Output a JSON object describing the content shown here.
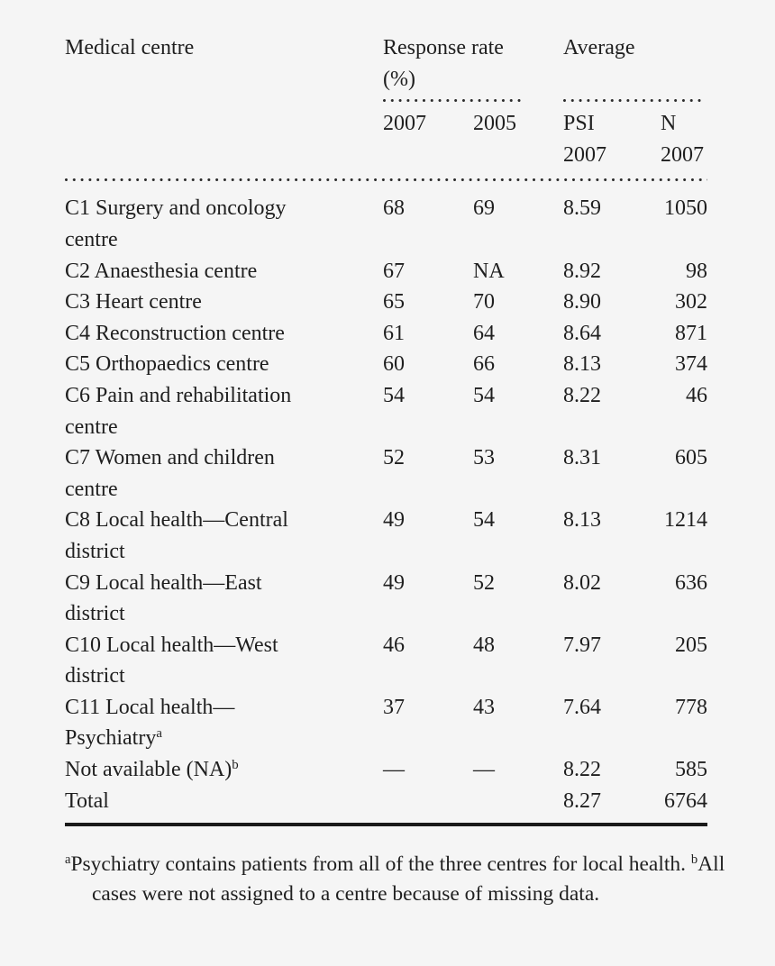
{
  "colors": {
    "background": "#f5f5f5",
    "text": "#1f1f1f",
    "rule": "#1a1a1a"
  },
  "header": {
    "medical_centre": "Medical centre",
    "group_response": "Response rate (%)",
    "group_average": "Average",
    "sub": {
      "resp_2007": "2007",
      "resp_2005": "2005",
      "psi_l1": "PSI",
      "psi_l2": "2007",
      "n_l1": "N",
      "n_l2": "2007"
    }
  },
  "rows": [
    {
      "l1": "C1 Surgery and oncology",
      "l2": "centre",
      "r2007": "68",
      "r2005": "69",
      "psi": "8.59",
      "n": "1050"
    },
    {
      "l1": "C2 Anaesthesia centre",
      "r2007": "67",
      "r2005": "NA",
      "psi": "8.92",
      "n": "98"
    },
    {
      "l1": "C3 Heart centre",
      "r2007": "65",
      "r2005": "70",
      "psi": "8.90",
      "n": "302"
    },
    {
      "l1": "C4 Reconstruction centre",
      "r2007": "61",
      "r2005": "64",
      "psi": "8.64",
      "n": "871"
    },
    {
      "l1": "C5 Orthopaedics centre",
      "r2007": "60",
      "r2005": "66",
      "psi": "8.13",
      "n": "374"
    },
    {
      "l1": "C6 Pain and rehabilitation",
      "l2": "centre",
      "r2007": "54",
      "r2005": "54",
      "psi": "8.22",
      "n": "46"
    },
    {
      "l1": "C7 Women and children",
      "l2": "centre",
      "r2007": "52",
      "r2005": "53",
      "psi": "8.31",
      "n": "605"
    },
    {
      "l1": "C8 Local health—Central",
      "l2": "district",
      "r2007": "49",
      "r2005": "54",
      "psi": "8.13",
      "n": "1214"
    },
    {
      "l1": "C9 Local health—East",
      "l2": "district",
      "r2007": "49",
      "r2005": "52",
      "psi": "8.02",
      "n": "636"
    },
    {
      "l1": "C10 Local health—West",
      "l2": "district",
      "r2007": "46",
      "r2005": "48",
      "psi": "7.97",
      "n": "205"
    },
    {
      "l1": "C11 Local health—",
      "l2": "Psychiatry",
      "l2_sup": "a",
      "r2007": "37",
      "r2005": "43",
      "psi": "7.64",
      "n": "778"
    },
    {
      "l1": "Not available (NA)",
      "l1_sup": "b",
      "r2007": "—",
      "r2005": "—",
      "psi": "8.22",
      "n": "585"
    },
    {
      "l1": "Total",
      "psi": "8.27",
      "n": "6764"
    }
  ],
  "footnotes": {
    "a_sup": "a",
    "a_text": "Psychiatry contains patients from all of the three centres for local health. ",
    "b_sup": "b",
    "b_text": "All cases were not assigned to a centre because of missing data."
  }
}
